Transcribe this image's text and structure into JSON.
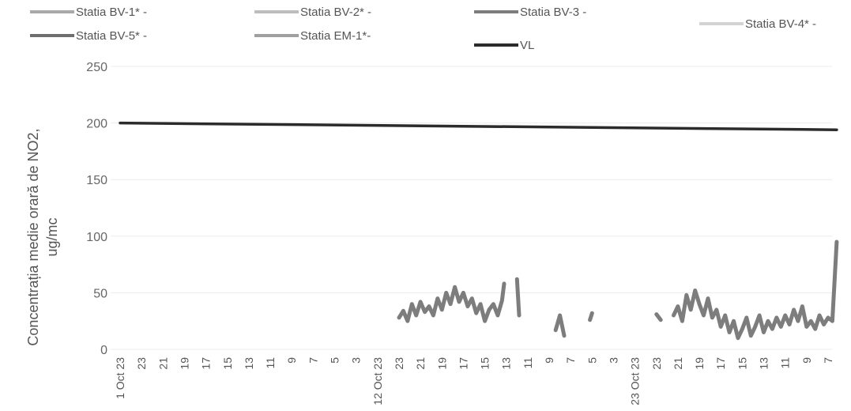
{
  "chart_data": {
    "type": "line",
    "ylabel_lines": [
      "Concentrația medie orară de NO2,",
      "ug/mc"
    ],
    "ylim": [
      0,
      250
    ],
    "yticks": [
      0,
      50,
      100,
      150,
      200,
      250
    ],
    "grid": true,
    "legend_position": "top",
    "x_tick_labels": [
      "1 Oct 23",
      "23",
      "21",
      "19",
      "17",
      "15",
      "13",
      "11",
      "9",
      "7",
      "5",
      "3",
      "12 Oct 23",
      "23",
      "21",
      "19",
      "17",
      "15",
      "13",
      "11",
      "9",
      "7",
      "5",
      "3",
      "23 Oct 23",
      "23",
      "21",
      "19",
      "17",
      "15",
      "13",
      "11",
      "9",
      "7"
    ],
    "series": [
      {
        "name": "Statia BV-1* -",
        "color": "#a9a9a9",
        "values": []
      },
      {
        "name": "Statia BV-2* -",
        "color": "#bdbdbd",
        "values": []
      },
      {
        "name": "Statia BV-3 -",
        "color": "#7d7d7d",
        "values": [
          [
            13,
            28
          ],
          [
            13.2,
            34
          ],
          [
            13.4,
            25
          ],
          [
            13.6,
            40
          ],
          [
            13.8,
            30
          ],
          [
            14,
            42
          ],
          [
            14.2,
            33
          ],
          [
            14.4,
            38
          ],
          [
            14.6,
            30
          ],
          [
            14.8,
            45
          ],
          [
            15,
            35
          ],
          [
            15.2,
            50
          ],
          [
            15.4,
            40
          ],
          [
            15.6,
            55
          ],
          [
            15.8,
            42
          ],
          [
            16,
            50
          ],
          [
            16.2,
            38
          ],
          [
            16.4,
            45
          ],
          [
            16.6,
            32
          ],
          [
            16.8,
            40
          ],
          [
            17,
            25
          ],
          [
            17.2,
            35
          ],
          [
            17.4,
            40
          ],
          [
            17.6,
            30
          ],
          [
            17.8,
            43
          ],
          [
            17.9,
            58
          ],
          null,
          [
            18.5,
            62
          ],
          [
            18.6,
            30
          ],
          null,
          [
            20.3,
            17
          ],
          [
            20.5,
            30
          ],
          [
            20.7,
            12
          ],
          null,
          [
            21.9,
            26
          ],
          [
            22,
            32
          ],
          null,
          [
            25,
            31
          ],
          [
            25.2,
            26
          ],
          null,
          [
            25.8,
            30
          ],
          [
            26,
            38
          ],
          [
            26.2,
            25
          ],
          [
            26.4,
            48
          ],
          [
            26.6,
            35
          ],
          [
            26.8,
            52
          ],
          [
            27,
            40
          ],
          [
            27.2,
            30
          ],
          [
            27.4,
            45
          ],
          [
            27.6,
            28
          ],
          [
            27.8,
            35
          ],
          [
            28,
            20
          ],
          [
            28.2,
            30
          ],
          [
            28.4,
            15
          ],
          [
            28.6,
            25
          ],
          [
            28.8,
            10
          ],
          [
            29,
            18
          ],
          [
            29.2,
            28
          ],
          [
            29.4,
            12
          ],
          [
            29.6,
            20
          ],
          [
            29.8,
            30
          ],
          [
            30,
            15
          ],
          [
            30.2,
            25
          ],
          [
            30.4,
            18
          ],
          [
            30.6,
            28
          ],
          [
            30.8,
            20
          ],
          [
            31,
            30
          ],
          [
            31.2,
            22
          ],
          [
            31.4,
            35
          ],
          [
            31.6,
            25
          ],
          [
            31.8,
            38
          ],
          [
            32,
            20
          ],
          [
            32.2,
            25
          ],
          [
            32.4,
            18
          ],
          [
            32.6,
            30
          ],
          [
            32.8,
            22
          ],
          [
            33,
            28
          ],
          [
            33.2,
            25
          ],
          [
            33.4,
            95
          ]
        ]
      },
      {
        "name": "Statia BV-4* -",
        "color": "#d3d3d3",
        "values": []
      },
      {
        "name": "Statia BV-5* -",
        "color": "#6e6e6e",
        "values": []
      },
      {
        "name": "Statia EM-1*-",
        "color": "#a0a0a0",
        "values": []
      },
      {
        "name": "VL",
        "color": "#2b2b2b",
        "values": [
          [
            0,
            200
          ],
          [
            33.4,
            194
          ]
        ]
      }
    ]
  }
}
